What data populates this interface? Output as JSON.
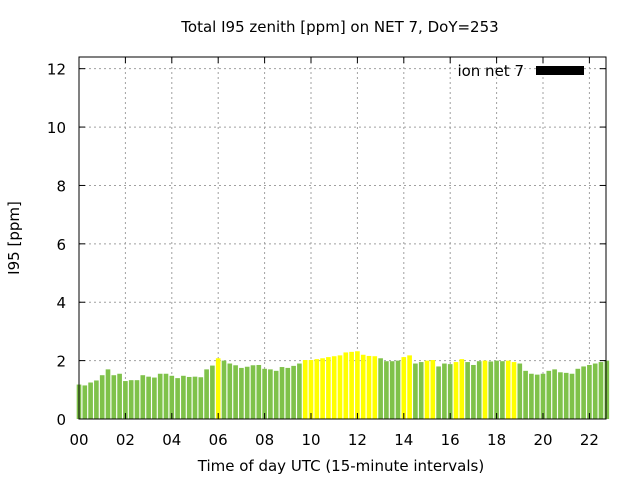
{
  "chart_data": {
    "type": "bar",
    "title": "Total I95 zenith [ppm] on NET 7, DoY=253",
    "xlabel": "Time of day UTC (15-minute intervals)",
    "ylabel": "I95 [ppm]",
    "ylim": [
      0,
      12.4
    ],
    "yticks": [
      0,
      2,
      4,
      6,
      8,
      10,
      12
    ],
    "xlim": [
      0,
      22.75
    ],
    "xticks": [
      0,
      2,
      4,
      6,
      8,
      10,
      12,
      14,
      16,
      18,
      20,
      22
    ],
    "xtick_labels": [
      "00",
      "02",
      "04",
      "06",
      "08",
      "10",
      "12",
      "14",
      "16",
      "18",
      "20",
      "22"
    ],
    "grid": true,
    "legend": {
      "label": "ion net 7",
      "position": "top-right",
      "color": "#000000"
    },
    "bar_colors": {
      "G": "#7fc24a",
      "Y": "#ffff00"
    },
    "bar_width_hours": 0.2,
    "bars": {
      "x": [
        0,
        0.25,
        0.5,
        0.75,
        1,
        1.25,
        1.5,
        1.75,
        2,
        2.25,
        2.5,
        2.75,
        3,
        3.25,
        3.5,
        3.75,
        4,
        4.25,
        4.5,
        4.75,
        5,
        5.25,
        5.5,
        5.75,
        6,
        6.25,
        6.5,
        6.75,
        7,
        7.25,
        7.5,
        7.75,
        8,
        8.25,
        8.5,
        8.75,
        9,
        9.25,
        9.5,
        9.75,
        10,
        10.25,
        10.5,
        10.75,
        11,
        11.25,
        11.5,
        11.75,
        12,
        12.25,
        12.5,
        12.75,
        13,
        13.25,
        13.5,
        13.75,
        14,
        14.25,
        14.5,
        14.75,
        15,
        15.25,
        15.5,
        15.75,
        16,
        16.25,
        16.5,
        16.75,
        17,
        17.25,
        17.5,
        17.75,
        18,
        18.25,
        18.5,
        18.75,
        19,
        19.25,
        19.5,
        19.75,
        20,
        20.25,
        20.5,
        20.75,
        21,
        21.25,
        21.5,
        21.75,
        22,
        22.25,
        22.5,
        22.75
      ],
      "values": [
        1.18,
        1.15,
        1.25,
        1.32,
        1.5,
        1.7,
        1.5,
        1.55,
        1.3,
        1.33,
        1.33,
        1.5,
        1.45,
        1.42,
        1.55,
        1.55,
        1.48,
        1.4,
        1.48,
        1.44,
        1.45,
        1.43,
        1.7,
        1.83,
        2.08,
        2.0,
        1.9,
        1.84,
        1.75,
        1.79,
        1.84,
        1.85,
        1.72,
        1.7,
        1.65,
        1.78,
        1.75,
        1.82,
        1.9,
        2.02,
        2.02,
        2.05,
        2.08,
        2.12,
        2.15,
        2.18,
        2.28,
        2.3,
        2.32,
        2.2,
        2.16,
        2.15,
        2.08,
        1.98,
        1.98,
        2.0,
        2.12,
        2.18,
        1.9,
        1.95,
        2.0,
        2.02,
        1.8,
        1.9,
        1.88,
        1.95,
        2.05,
        1.95,
        1.85,
        1.98,
        2.0,
        1.97,
        2.0,
        1.98,
        2.0,
        1.95,
        1.9,
        1.65,
        1.55,
        1.52,
        1.55,
        1.65,
        1.7,
        1.6,
        1.58,
        1.55,
        1.72,
        1.8,
        1.85,
        1.9,
        1.95,
        2.0
      ],
      "colors": "GGGGGGGGGGGGGGGGGGGGGGGGYGGGGGGGGGGGGGGYYYYYYYYYYYYYGGGGYYGGYYGGGYYGGGYGGGYYGGGGGGGGGGGGGG"
    }
  }
}
